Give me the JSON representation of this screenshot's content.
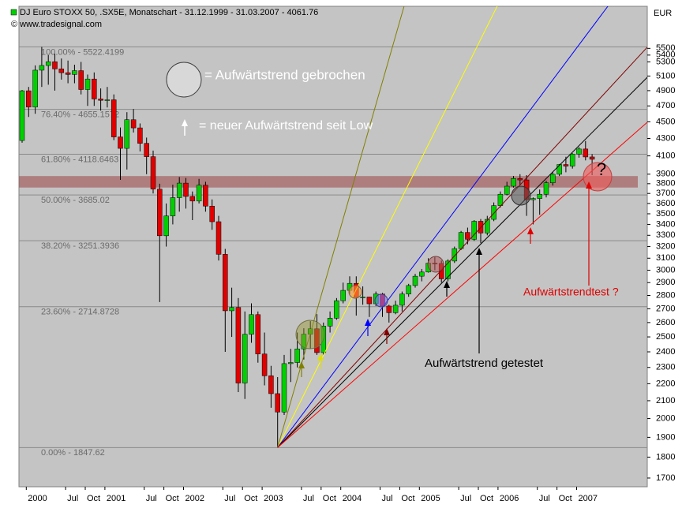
{
  "chart_data": {
    "type": "candlestick",
    "title": "DJ Euro STOXX 50, .SX5E, Monatschart - 31.12.1999 - 31.03.2007 - 4061.76",
    "subtitle": "© www.tradesignal.com",
    "y_axis_label": "EUR",
    "log_scale": true,
    "up_color": "#00d000",
    "down_color": "#e00000",
    "categories": [
      null,
      "2000",
      null,
      null,
      null,
      null,
      null,
      "Jul",
      null,
      null,
      "Oct",
      null,
      null,
      "2001",
      null,
      null,
      null,
      null,
      null,
      "Jul",
      null,
      null,
      "Oct",
      null,
      null,
      "2002",
      null,
      null,
      null,
      null,
      null,
      "Jul",
      null,
      null,
      "Oct",
      null,
      null,
      "2003",
      null,
      null,
      null,
      null,
      null,
      "Jul",
      null,
      null,
      "Oct",
      null,
      null,
      "2004",
      null,
      null,
      null,
      null,
      null,
      "Jul",
      null,
      null,
      "Oct",
      null,
      null,
      "2005",
      null,
      null,
      null,
      null,
      null,
      "Jul",
      null,
      null,
      "Oct",
      null,
      null,
      "2006",
      null,
      null,
      null,
      null,
      null,
      "Jul",
      null,
      null,
      "Oct",
      null,
      null,
      "2007",
      null,
      null
    ],
    "open": [
      4276,
      4898,
      4685,
      5182,
      5249,
      5303,
      5200,
      5146,
      5122,
      5175,
      4915,
      5058,
      4790,
      4772,
      4779,
      4318,
      4185,
      4526,
      4426,
      4243,
      4091,
      3744,
      3296,
      3479,
      3658,
      3806,
      3670,
      3624,
      3784,
      3574,
      3425,
      3133,
      2685,
      2710,
      2204,
      2518,
      2657,
      2386,
      2248,
      2141,
      2036,
      2324,
      2331,
      2419,
      2519,
      2556,
      2395,
      2575,
      2631,
      2760,
      2839,
      2894,
      2787,
      2788,
      2737,
      2811,
      2720,
      2671,
      2726,
      2811,
      2877,
      2951,
      2985,
      3058,
      3056,
      2930,
      3076,
      3182,
      3326,
      3264,
      3429,
      3321,
      3447,
      3579,
      3692,
      3774,
      3854,
      3839,
      3637,
      3649,
      3692,
      3809,
      3899,
      4004,
      3987,
      4120,
      4178,
      4088
    ],
    "high": [
      4910,
      4950,
      5250,
      5522,
      5400,
      5420,
      5350,
      5320,
      5260,
      5300,
      5120,
      5150,
      4930,
      4950,
      4850,
      4430,
      4620,
      4660,
      4480,
      4310,
      4160,
      3800,
      3600,
      3790,
      3870,
      3860,
      3720,
      3850,
      3820,
      3640,
      3480,
      3180,
      2860,
      2780,
      2680,
      2740,
      2680,
      2530,
      2310,
      2240,
      2380,
      2420,
      2530,
      2560,
      2610,
      2660,
      2600,
      2680,
      2780,
      2900,
      2950,
      2950,
      2870,
      2790,
      2830,
      2820,
      2730,
      2760,
      2830,
      2890,
      2970,
      3010,
      3100,
      3110,
      3080,
      3090,
      3200,
      3340,
      3370,
      3440,
      3450,
      3480,
      3610,
      3720,
      3820,
      3880,
      3900,
      3890,
      3660,
      3740,
      3830,
      3920,
      4010,
      4090,
      4130,
      4200,
      4270,
      4120
    ],
    "low": [
      4250,
      4560,
      4600,
      4950,
      4980,
      4900,
      5050,
      5000,
      5000,
      4850,
      4700,
      4700,
      4640,
      4680,
      4280,
      3840,
      3950,
      4370,
      4150,
      3900,
      3700,
      2750,
      3200,
      3400,
      3520,
      3550,
      3440,
      3600,
      3520,
      3350,
      3080,
      2400,
      2500,
      2150,
      2110,
      2460,
      2330,
      2190,
      2060,
      1848,
      2020,
      2210,
      2300,
      2350,
      2420,
      2380,
      2380,
      2530,
      2620,
      2740,
      2810,
      2650,
      2730,
      2640,
      2720,
      2640,
      2600,
      2660,
      2680,
      2790,
      2860,
      2910,
      2980,
      3000,
      2900,
      2910,
      3060,
      3170,
      3220,
      3250,
      3230,
      3300,
      3430,
      3560,
      3680,
      3760,
      3790,
      3480,
      3400,
      3490,
      3660,
      3780,
      3880,
      3920,
      3960,
      4080,
      4050,
      3890
    ],
    "close": [
      4898,
      4685,
      5182,
      5249,
      5303,
      5200,
      5146,
      5122,
      5175,
      4915,
      5058,
      4790,
      4772,
      4779,
      4318,
      4185,
      4526,
      4426,
      4243,
      4091,
      3744,
      3296,
      3479,
      3658,
      3806,
      3670,
      3624,
      3784,
      3574,
      3425,
      3133,
      2685,
      2710,
      2204,
      2518,
      2657,
      2386,
      2248,
      2141,
      2036,
      2324,
      2331,
      2419,
      2519,
      2556,
      2395,
      2575,
      2631,
      2760,
      2839,
      2894,
      2787,
      2788,
      2737,
      2811,
      2720,
      2671,
      2726,
      2811,
      2877,
      2951,
      2985,
      3058,
      3056,
      2930,
      3076,
      3182,
      3326,
      3264,
      3429,
      3321,
      3447,
      3579,
      3692,
      3774,
      3854,
      3839,
      3637,
      3649,
      3692,
      3809,
      3899,
      4004,
      3987,
      4120,
      4178,
      4088,
      4062
    ],
    "ylim": [
      1660,
      6170
    ],
    "yticks": [
      1700,
      1800,
      1900,
      2000,
      2100,
      2200,
      2300,
      2400,
      2500,
      2600,
      2700,
      2800,
      2900,
      3000,
      3100,
      3200,
      3300,
      3400,
      3500,
      3600,
      3700,
      3800,
      3900,
      4100,
      4300,
      4500,
      4700,
      4900,
      5100,
      5300,
      5400,
      5500
    ],
    "fib_levels": [
      {
        "label": "100.00% - 5522.4199",
        "value": 5522.4199
      },
      {
        "label": "76.40% - 4655.1572",
        "value": 4655.1572
      },
      {
        "label": "61.80% - 4118.6463",
        "value": 4118.6463
      },
      {
        "label": "50.00% - 3685.02",
        "value": 3685.02
      },
      {
        "label": "38.20% - 3251.3936",
        "value": 3251.3936
      },
      {
        "label": "23.60% - 2714.8728",
        "value": 2714.8728
      },
      {
        "label": "0.00% - 1847.62",
        "value": 1847.62
      }
    ],
    "resistance_band": [
      3760,
      3880
    ],
    "trend_lines": [
      {
        "color": "#808000",
        "start": [
          39,
          1848
        ],
        "end": [
          58.3,
          6170
        ]
      },
      {
        "color": "#ffff00",
        "start": [
          39,
          1848
        ],
        "end": [
          72.5,
          6170
        ]
      },
      {
        "color": "#0000ff",
        "start": [
          39,
          1848
        ],
        "end": [
          89.4,
          6170
        ]
      },
      {
        "color": "#800000",
        "start": [
          39,
          1848
        ],
        "end": [
          95.4,
          5516
        ]
      },
      {
        "color": "#000000",
        "start": [
          39,
          1848
        ],
        "end": [
          95.4,
          5080
        ]
      },
      {
        "color": "#ff0000",
        "start": [
          39,
          1848
        ],
        "end": [
          95.4,
          4493
        ]
      }
    ],
    "annotations": {
      "legend_broken": "= Aufwärtstrend gebrochen",
      "legend_new": "= neuer Aufwärtstrend seit Low",
      "tested": "Aufwärtstrend getestet",
      "test_question": "Aufwärtstrendtest ?",
      "question_mark": "?"
    }
  }
}
